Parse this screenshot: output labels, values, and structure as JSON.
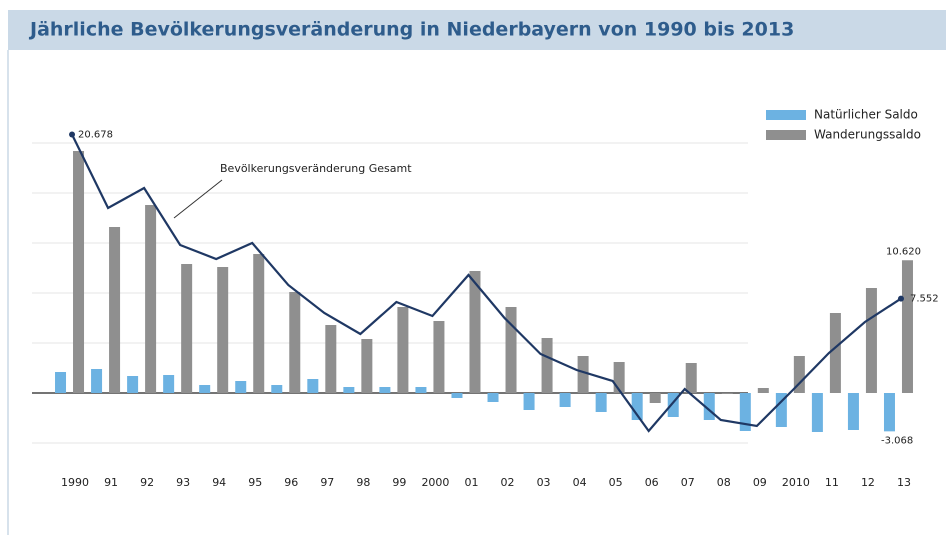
{
  "chart_data": {
    "type": "bar_line",
    "title": "Jährliche Bevölkerungsveränderung in Niederbayern von 1990 bis 2013",
    "categories": [
      "1990",
      "91",
      "92",
      "93",
      "94",
      "95",
      "96",
      "97",
      "98",
      "99",
      "2000",
      "01",
      "02",
      "03",
      "04",
      "05",
      "06",
      "07",
      "08",
      "09",
      "2010",
      "11",
      "12",
      "13"
    ],
    "series": [
      {
        "name": "Natürlicher Saldo",
        "color": "#6cb2e2",
        "kind": "bar",
        "values": [
          1680,
          1920,
          1360,
          1440,
          640,
          960,
          640,
          1120,
          480,
          480,
          480,
          -400,
          -720,
          -1360,
          -1120,
          -1520,
          -2160,
          -1920,
          -2160,
          -3040,
          -2720,
          -3120,
          -2960,
          -3068
        ],
        "value_labels": [
          null,
          null,
          null,
          null,
          null,
          null,
          null,
          null,
          null,
          null,
          null,
          null,
          null,
          null,
          null,
          null,
          null,
          null,
          null,
          null,
          null,
          null,
          null,
          "-3.068"
        ]
      },
      {
        "name": "Wanderungssaldo",
        "color": "#8f8f8f",
        "kind": "bar",
        "values": [
          19360,
          13280,
          15040,
          10320,
          10080,
          11120,
          8080,
          5440,
          4320,
          6880,
          5760,
          9760,
          6880,
          4400,
          2960,
          2480,
          -800,
          2400,
          -80,
          400,
          2960,
          6400,
          8400,
          10620
        ],
        "value_labels": [
          null,
          null,
          null,
          null,
          null,
          null,
          null,
          null,
          null,
          null,
          null,
          null,
          null,
          null,
          null,
          null,
          null,
          null,
          null,
          null,
          null,
          null,
          null,
          "10.620"
        ]
      },
      {
        "name": "Bevölkerungsveränderung Gesamt",
        "color": "#1f3864",
        "kind": "line",
        "values": [
          20678,
          14800,
          16400,
          11840,
          10720,
          12000,
          8640,
          6400,
          4720,
          7280,
          6160,
          9440,
          6000,
          3120,
          1840,
          960,
          -3040,
          320,
          -2160,
          -2640,
          240,
          3200,
          5680,
          7552
        ],
        "value_labels": [
          "20.678",
          null,
          null,
          null,
          null,
          null,
          null,
          null,
          null,
          null,
          null,
          null,
          null,
          null,
          null,
          null,
          null,
          null,
          null,
          null,
          null,
          null,
          null,
          "7.552"
        ]
      }
    ],
    "ylim": [
      -5000,
      22000
    ],
    "yticks": [
      -4000,
      0,
      4000,
      8000,
      12000,
      16000,
      20000
    ],
    "grid": true,
    "legend": "upper right"
  }
}
